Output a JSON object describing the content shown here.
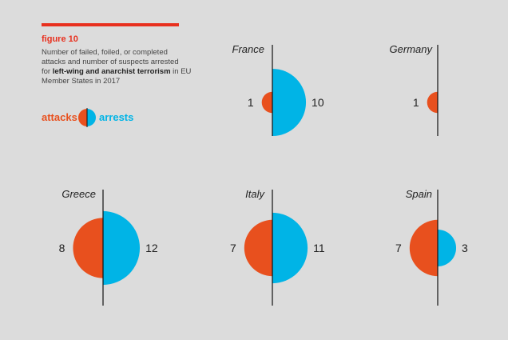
{
  "colors": {
    "attacks": "#e8501e",
    "arrests": "#00b4e6",
    "accent_bar": "#e8301e",
    "axis": "#111111"
  },
  "figure": {
    "label": "figure 10",
    "desc_line1": "Number of failed, foiled, or completed",
    "desc_line2": "attacks and number of suspects arrested",
    "desc_line3_pre": "for ",
    "desc_line3_bold": "left-wing and anarchist terrorism",
    "desc_line3_post": " in EU",
    "desc_line4": "Member States in 2017"
  },
  "legend": {
    "attacks": "attacks",
    "arrests": "arrests"
  },
  "chart_data": {
    "type": "semicircle-pairs",
    "series": [
      {
        "name": "attacks",
        "side": "left"
      },
      {
        "name": "arrests",
        "side": "right"
      }
    ],
    "countries": [
      {
        "name": "France",
        "attacks": 1,
        "arrests": 10
      },
      {
        "name": "Germany",
        "attacks": 1,
        "arrests": null
      },
      {
        "name": "Greece",
        "attacks": 8,
        "arrests": 12
      },
      {
        "name": "Italy",
        "attacks": 7,
        "arrests": 11
      },
      {
        "name": "Spain",
        "attacks": 7,
        "arrests": 3
      }
    ]
  }
}
